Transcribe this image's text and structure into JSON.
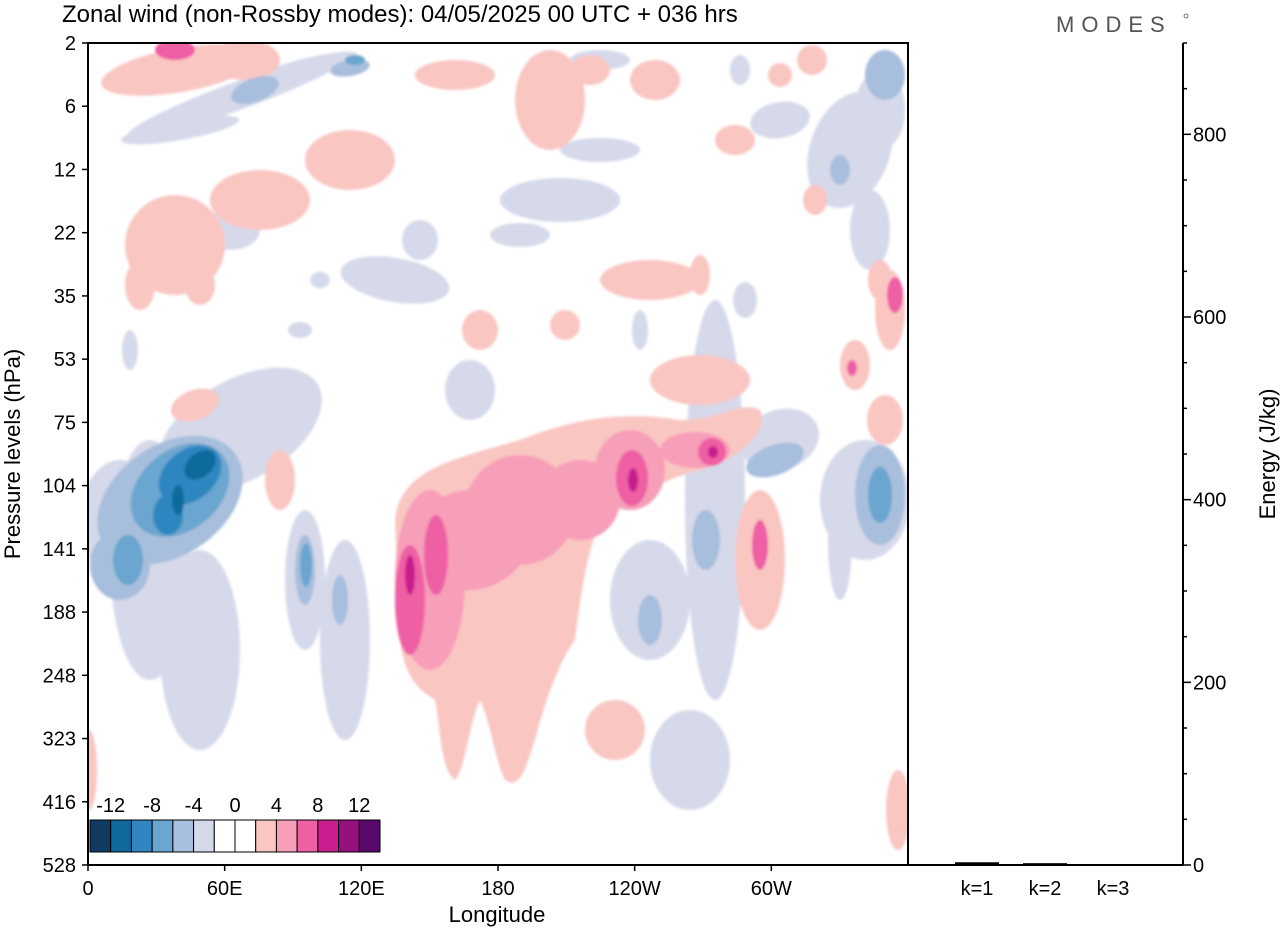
{
  "chart_data": [
    {
      "type": "heatmap",
      "title": "Zonal wind (non-Rossby modes):  04/05/2025  00 UTC  + 036 hrs",
      "brand": "MODES",
      "xlabel": "Longitude",
      "ylabel": "Pressure levels (hPa)",
      "x_ticks": [
        "0",
        "60E",
        "120E",
        "180",
        "120W",
        "60W"
      ],
      "y_ticks": [
        "2",
        "6",
        "12",
        "22",
        "35",
        "53",
        "75",
        "104",
        "141",
        "188",
        "248",
        "323",
        "416",
        "528"
      ],
      "colorbar": {
        "labels": [
          "-12",
          "-8",
          "-4",
          "0",
          "4",
          "8",
          "12"
        ],
        "colors": [
          "#103a5e",
          "#0f6a9c",
          "#2f86c0",
          "#6aa6cf",
          "#a7bedc",
          "#d6d9ea",
          "#ffffff",
          "#ffffff",
          "#f9c6c2",
          "#f79eb8",
          "#ee5fa4",
          "#c81e8e",
          "#96117e",
          "#5a0a6c"
        ]
      },
      "features": [
        {
          "lon": 45,
          "level": 104,
          "value": -12
        },
        {
          "lon": 95,
          "level": 160,
          "value": -6
        },
        {
          "lon": 150,
          "level": 160,
          "value": 8
        },
        {
          "lon": 238,
          "level": 104,
          "value": 8
        },
        {
          "lon": 268,
          "level": 90,
          "value": 7
        },
        {
          "lon": 30,
          "level": 2,
          "value": 7
        },
        {
          "lon": 345,
          "level": 35,
          "value": 6
        },
        {
          "lon": 335,
          "level": 120,
          "value": -5
        }
      ]
    },
    {
      "type": "bar",
      "categories": [
        "k=1",
        "k=2",
        "k=3"
      ],
      "values": [
        3,
        2,
        1
      ],
      "ylabel": "Energy (J/kg)",
      "ylim": [
        0,
        900
      ],
      "y_ticks": [
        0,
        200,
        400,
        600,
        800
      ]
    }
  ]
}
